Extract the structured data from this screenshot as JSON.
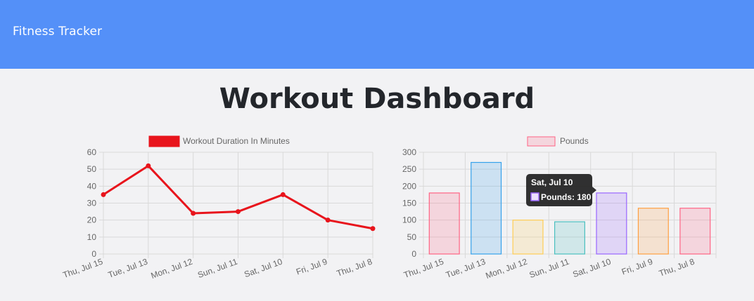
{
  "header": {
    "brand": "Fitness Tracker"
  },
  "main": {
    "title": "Workout Dashboard"
  },
  "colors": {
    "navbar": "#5490f8",
    "line": "#e8141c",
    "tooltip_bg": "#1f1f1f"
  },
  "chart_data": [
    {
      "type": "line",
      "categories": [
        "Thu, Jul 15",
        "Tue, Jul 13",
        "Mon, Jul 12",
        "Sun, Jul 11",
        "Sat, Jul 10",
        "Fri, Jul 9",
        "Thu, Jul 8"
      ],
      "series": [
        {
          "name": "Workout Duration In Minutes",
          "values": [
            35,
            52,
            24,
            25,
            35,
            20,
            15
          ],
          "color": "#e8141c"
        }
      ],
      "yticks": [
        "60",
        "50",
        "40",
        "30",
        "20",
        "10",
        "0"
      ],
      "ylim": [
        0,
        60
      ],
      "grid": true,
      "legend": "top"
    },
    {
      "type": "bar",
      "categories": [
        "Thu, Jul 15",
        "Tue, Jul 13",
        "Mon, Jul 12",
        "Sun, Jul 11",
        "Sat, Jul 10",
        "Fri, Jul 9",
        "Thu, Jul 8"
      ],
      "series": [
        {
          "name": "Pounds",
          "values": [
            180,
            270,
            100,
            95,
            180,
            135,
            135
          ]
        }
      ],
      "bar_fills": [
        "rgba(255,99,132,0.2)",
        "rgba(54,162,235,0.2)",
        "rgba(255,206,86,0.2)",
        "rgba(75,192,192,0.2)",
        "rgba(153,102,255,0.2)",
        "rgba(255,159,64,0.2)",
        "rgba(255,99,132,0.2)"
      ],
      "bar_borders": [
        "#ff6384",
        "#36a2eb",
        "#ffce56",
        "#4bc0c0",
        "#9966ff",
        "#ff9f40",
        "#ff6384"
      ],
      "legend_fill": "rgba(255,99,132,0.2)",
      "legend_border": "#ff6384",
      "yticks": [
        "300",
        "250",
        "200",
        "150",
        "100",
        "50",
        "0"
      ],
      "ylim": [
        0,
        300
      ],
      "grid": true,
      "legend": "top",
      "tooltip": {
        "title": "Sat, Jul 10",
        "label": "Pounds: 180",
        "index": 4,
        "swatch_fill": "rgba(153,102,255,0.2)",
        "swatch_border": "#9966ff"
      }
    }
  ]
}
